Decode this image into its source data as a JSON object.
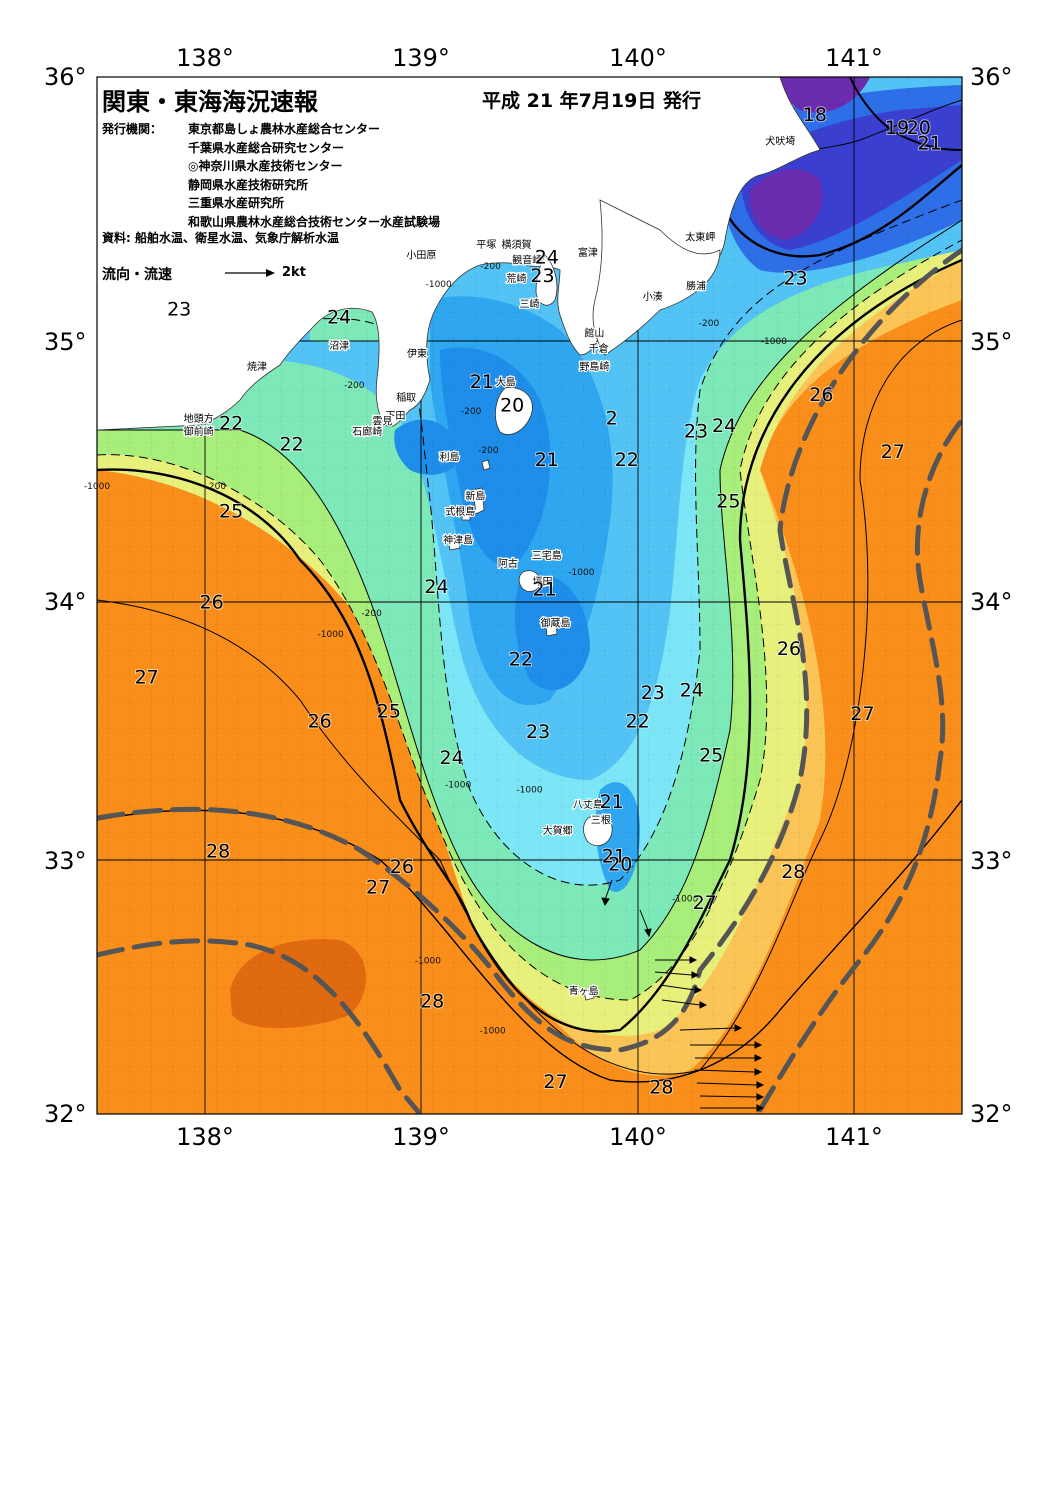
{
  "header": {
    "title": "関東・東海海況速報",
    "issue_date": "平成 21 年7月19日 発行",
    "publishers_label": "発行機関：",
    "publishers": [
      "東京都島しょ農林水産総合センター",
      "千葉県水産総合研究センター",
      "◎神奈川県水産技術センター",
      "静岡県水産技術研究所",
      "三重県水産研究所",
      "和歌山県農林水産総合技術センター水産試験場"
    ],
    "sources": "資料: 船舶水温、衛星水温、気象庁解析水温",
    "legend_label": "流向・流速",
    "legend_value": "2kt"
  },
  "axes": {
    "top_lon": [
      "138°",
      "139°",
      "140°",
      "141°"
    ],
    "bottom_lon": [
      "138°",
      "139°",
      "140°",
      "141°"
    ],
    "left_lat": [
      "36°",
      "35°",
      "34°",
      "33°",
      "32°"
    ],
    "right_lat": [
      "36°",
      "35°",
      "34°",
      "33°",
      "32°"
    ]
  },
  "temperature_labels": [
    {
      "t": "18",
      "lon": 140.82,
      "lat": 35.83
    },
    {
      "t": "19",
      "lon": 141.2,
      "lat": 35.78
    },
    {
      "t": "20",
      "lon": 141.3,
      "lat": 35.78
    },
    {
      "t": "21",
      "lon": 141.35,
      "lat": 35.72
    },
    {
      "t": "23",
      "lon": 140.73,
      "lat": 35.2
    },
    {
      "t": "24",
      "lon": 139.58,
      "lat": 35.28
    },
    {
      "t": "23",
      "lon": 139.56,
      "lat": 35.21
    },
    {
      "t": "23",
      "lon": 137.88,
      "lat": 35.08
    },
    {
      "t": "24",
      "lon": 138.62,
      "lat": 35.05
    },
    {
      "t": "21",
      "lon": 139.28,
      "lat": 34.8
    },
    {
      "t": "20",
      "lon": 139.42,
      "lat": 34.71
    },
    {
      "t": "2",
      "lon": 139.88,
      "lat": 34.66
    },
    {
      "t": "22",
      "lon": 138.12,
      "lat": 34.64
    },
    {
      "t": "22",
      "lon": 138.4,
      "lat": 34.56
    },
    {
      "t": "23",
      "lon": 140.27,
      "lat": 34.61
    },
    {
      "t": "24",
      "lon": 140.4,
      "lat": 34.63
    },
    {
      "t": "26",
      "lon": 140.85,
      "lat": 34.75
    },
    {
      "t": "27",
      "lon": 141.18,
      "lat": 34.53
    },
    {
      "t": "21",
      "lon": 139.58,
      "lat": 34.5
    },
    {
      "t": "22",
      "lon": 139.95,
      "lat": 34.5
    },
    {
      "t": "25",
      "lon": 140.42,
      "lat": 34.34
    },
    {
      "t": "25",
      "lon": 138.12,
      "lat": 34.3
    },
    {
      "t": "24",
      "lon": 139.07,
      "lat": 34.01
    },
    {
      "t": "21",
      "lon": 139.57,
      "lat": 34.0
    },
    {
      "t": "26",
      "lon": 138.03,
      "lat": 33.95
    },
    {
      "t": "22",
      "lon": 139.46,
      "lat": 33.73
    },
    {
      "t": "26",
      "lon": 140.7,
      "lat": 33.77
    },
    {
      "t": "27",
      "lon": 137.73,
      "lat": 33.66
    },
    {
      "t": "23",
      "lon": 140.07,
      "lat": 33.6
    },
    {
      "t": "24",
      "lon": 140.25,
      "lat": 33.61
    },
    {
      "t": "25",
      "lon": 138.85,
      "lat": 33.53
    },
    {
      "t": "26",
      "lon": 138.53,
      "lat": 33.49
    },
    {
      "t": "27",
      "lon": 141.04,
      "lat": 33.52
    },
    {
      "t": "22",
      "lon": 140.0,
      "lat": 33.49
    },
    {
      "t": "23",
      "lon": 139.54,
      "lat": 33.45
    },
    {
      "t": "24",
      "lon": 139.14,
      "lat": 33.35
    },
    {
      "t": "25",
      "lon": 140.34,
      "lat": 33.36
    },
    {
      "t": "21",
      "lon": 139.88,
      "lat": 33.18
    },
    {
      "t": "28",
      "lon": 138.06,
      "lat": 32.99
    },
    {
      "t": "21",
      "lon": 139.89,
      "lat": 32.97
    },
    {
      "t": "20",
      "lon": 139.92,
      "lat": 32.94
    },
    {
      "t": "26",
      "lon": 138.91,
      "lat": 32.93
    },
    {
      "t": "28",
      "lon": 140.72,
      "lat": 32.91
    },
    {
      "t": "27",
      "lon": 138.8,
      "lat": 32.85
    },
    {
      "t": "27",
      "lon": 140.31,
      "lat": 32.79
    },
    {
      "t": "28",
      "lon": 139.05,
      "lat": 32.41
    },
    {
      "t": "27",
      "lon": 139.62,
      "lat": 32.1
    },
    {
      "t": "28",
      "lon": 140.11,
      "lat": 32.08
    }
  ],
  "place_labels": [
    {
      "name": "犬吠埼",
      "lon": 140.66,
      "lat": 35.74
    },
    {
      "name": "太東岬",
      "lon": 140.29,
      "lat": 35.37
    },
    {
      "name": "勝浦",
      "lon": 140.27,
      "lat": 35.18
    },
    {
      "name": "小湊",
      "lon": 140.07,
      "lat": 35.14
    },
    {
      "name": "平塚",
      "lon": 139.3,
      "lat": 35.34
    },
    {
      "name": "横須賀",
      "lon": 139.44,
      "lat": 35.34
    },
    {
      "name": "観音崎",
      "lon": 139.49,
      "lat": 35.28
    },
    {
      "name": "富津",
      "lon": 139.77,
      "lat": 35.31
    },
    {
      "name": "小田原",
      "lon": 139.0,
      "lat": 35.3
    },
    {
      "name": "荒崎",
      "lon": 139.44,
      "lat": 35.21
    },
    {
      "name": "三崎",
      "lon": 139.5,
      "lat": 35.11
    },
    {
      "name": "館山",
      "lon": 139.8,
      "lat": 35.0
    },
    {
      "name": "千倉",
      "lon": 139.82,
      "lat": 34.94
    },
    {
      "name": "野島崎",
      "lon": 139.8,
      "lat": 34.87
    },
    {
      "name": "沼津",
      "lon": 138.62,
      "lat": 34.95
    },
    {
      "name": "伊東",
      "lon": 138.98,
      "lat": 34.92
    },
    {
      "name": "焼津",
      "lon": 138.24,
      "lat": 34.87
    },
    {
      "name": "大島",
      "lon": 139.39,
      "lat": 34.81
    },
    {
      "name": "稲取",
      "lon": 138.93,
      "lat": 34.75
    },
    {
      "name": "下田",
      "lon": 138.88,
      "lat": 34.68
    },
    {
      "name": "雲見",
      "lon": 138.82,
      "lat": 34.66
    },
    {
      "name": "石廊崎",
      "lon": 138.75,
      "lat": 34.62
    },
    {
      "name": "地頭方",
      "lon": 137.97,
      "lat": 34.67
    },
    {
      "name": "御前崎",
      "lon": 137.97,
      "lat": 34.62
    },
    {
      "name": "利島",
      "lon": 139.13,
      "lat": 34.52
    },
    {
      "name": "新島",
      "lon": 139.25,
      "lat": 34.37
    },
    {
      "name": "式根島",
      "lon": 139.18,
      "lat": 34.31
    },
    {
      "name": "神津島",
      "lon": 139.17,
      "lat": 34.2
    },
    {
      "name": "三宅島",
      "lon": 139.58,
      "lat": 34.14
    },
    {
      "name": "阿古",
      "lon": 139.4,
      "lat": 34.11
    },
    {
      "name": "坪田",
      "lon": 139.56,
      "lat": 34.04
    },
    {
      "name": "御蔵島",
      "lon": 139.62,
      "lat": 33.88
    },
    {
      "name": "八丈島",
      "lon": 139.77,
      "lat": 33.18
    },
    {
      "name": "三根",
      "lon": 139.83,
      "lat": 33.12
    },
    {
      "name": "大賀郷",
      "lon": 139.63,
      "lat": 33.08
    },
    {
      "name": "青ヶ島",
      "lon": 139.75,
      "lat": 32.46
    }
  ],
  "depth_labels": [
    {
      "t": "-200",
      "lon": 139.32,
      "lat": 35.26
    },
    {
      "t": "-1000",
      "lon": 139.08,
      "lat": 35.19
    },
    {
      "t": "-200",
      "lon": 140.33,
      "lat": 35.04
    },
    {
      "t": "-1000",
      "lon": 140.63,
      "lat": 34.97
    },
    {
      "t": "-200",
      "lon": 138.69,
      "lat": 34.8
    },
    {
      "t": "-200",
      "lon": 139.23,
      "lat": 34.7
    },
    {
      "t": "-200",
      "lon": 139.31,
      "lat": 34.55
    },
    {
      "t": "-1000",
      "lon": 137.5,
      "lat": 34.41
    },
    {
      "t": "-200",
      "lon": 138.05,
      "lat": 34.41
    },
    {
      "t": "-1000",
      "lon": 139.74,
      "lat": 34.08
    },
    {
      "t": "-200",
      "lon": 138.77,
      "lat": 33.92
    },
    {
      "t": "-1000",
      "lon": 138.58,
      "lat": 33.84
    },
    {
      "t": "-1000",
      "lon": 139.17,
      "lat": 33.26
    },
    {
      "t": "-1000",
      "lon": 139.5,
      "lat": 33.24
    },
    {
      "t": "-1000",
      "lon": 140.22,
      "lat": 32.82
    },
    {
      "t": "-1000",
      "lon": 139.03,
      "lat": 32.58
    },
    {
      "t": "-1000",
      "lon": 139.33,
      "lat": 32.31
    }
  ],
  "colors": {
    "sst_17": "#6a2db0",
    "sst_18": "#3a3fd0",
    "sst_19": "#2e6ee6",
    "sst_20": "#1f8eea",
    "sst_21": "#2fa6f0",
    "sst_22": "#52c3f4",
    "sst_23": "#7ce6f7",
    "sst_24": "#7de8b8",
    "sst_25": "#a8ee7a",
    "sst_26": "#e8f07c",
    "sst_27": "#fbc456",
    "sst_28": "#f98e1a",
    "sst_29": "#df6a10",
    "land": "#ffffff",
    "grid": "#000000",
    "kuroshio_axis": "#555555"
  }
}
